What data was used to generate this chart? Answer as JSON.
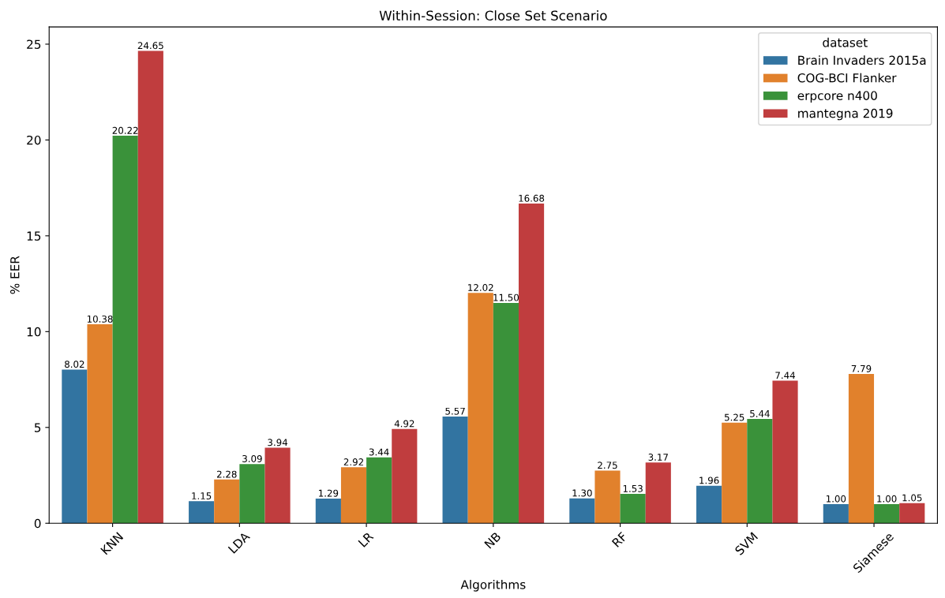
{
  "chart_data": {
    "type": "bar",
    "title": "Within-Session: Close Set Scenario",
    "xlabel": "Algorithms",
    "ylabel": "% EER",
    "legend_title": "dataset",
    "categories": [
      "KNN",
      "LDA",
      "LR",
      "NB",
      "RF",
      "SVM",
      "Siamese"
    ],
    "series": [
      {
        "name": "Brain Invaders 2015a",
        "color": "#3274a1",
        "values": [
          8.02,
          1.15,
          1.29,
          5.57,
          1.3,
          1.96,
          1.0
        ],
        "value_labels": [
          "8.02",
          "1.15",
          "1.29",
          "5.57",
          "1.30",
          "1.96",
          "1.00"
        ]
      },
      {
        "name": "COG-BCI Flanker",
        "color": "#e1812c",
        "values": [
          10.38,
          2.28,
          2.92,
          12.02,
          2.75,
          5.25,
          7.79
        ],
        "value_labels": [
          "10.38",
          "2.28",
          "2.92",
          "12.02",
          "2.75",
          "5.25",
          "7.79"
        ]
      },
      {
        "name": "erpcore n400",
        "color": "#3a923a",
        "values": [
          20.22,
          3.09,
          3.44,
          11.5,
          1.53,
          5.44,
          1.0
        ],
        "value_labels": [
          "20.22",
          "3.09",
          "3.44",
          "11.50",
          "1.53",
          "5.44",
          "1.00"
        ]
      },
      {
        "name": "mantegna 2019",
        "color": "#c03d3e",
        "values": [
          24.65,
          3.94,
          4.92,
          16.68,
          3.17,
          7.44,
          1.05
        ],
        "value_labels": [
          "24.65",
          "3.94",
          "4.92",
          "16.68",
          "3.17",
          "7.44",
          "1.05"
        ]
      }
    ],
    "ylim": [
      0,
      25.9
    ],
    "yticks": [
      0,
      5,
      10,
      15,
      20,
      25
    ],
    "grid": false,
    "legend": "top right"
  }
}
